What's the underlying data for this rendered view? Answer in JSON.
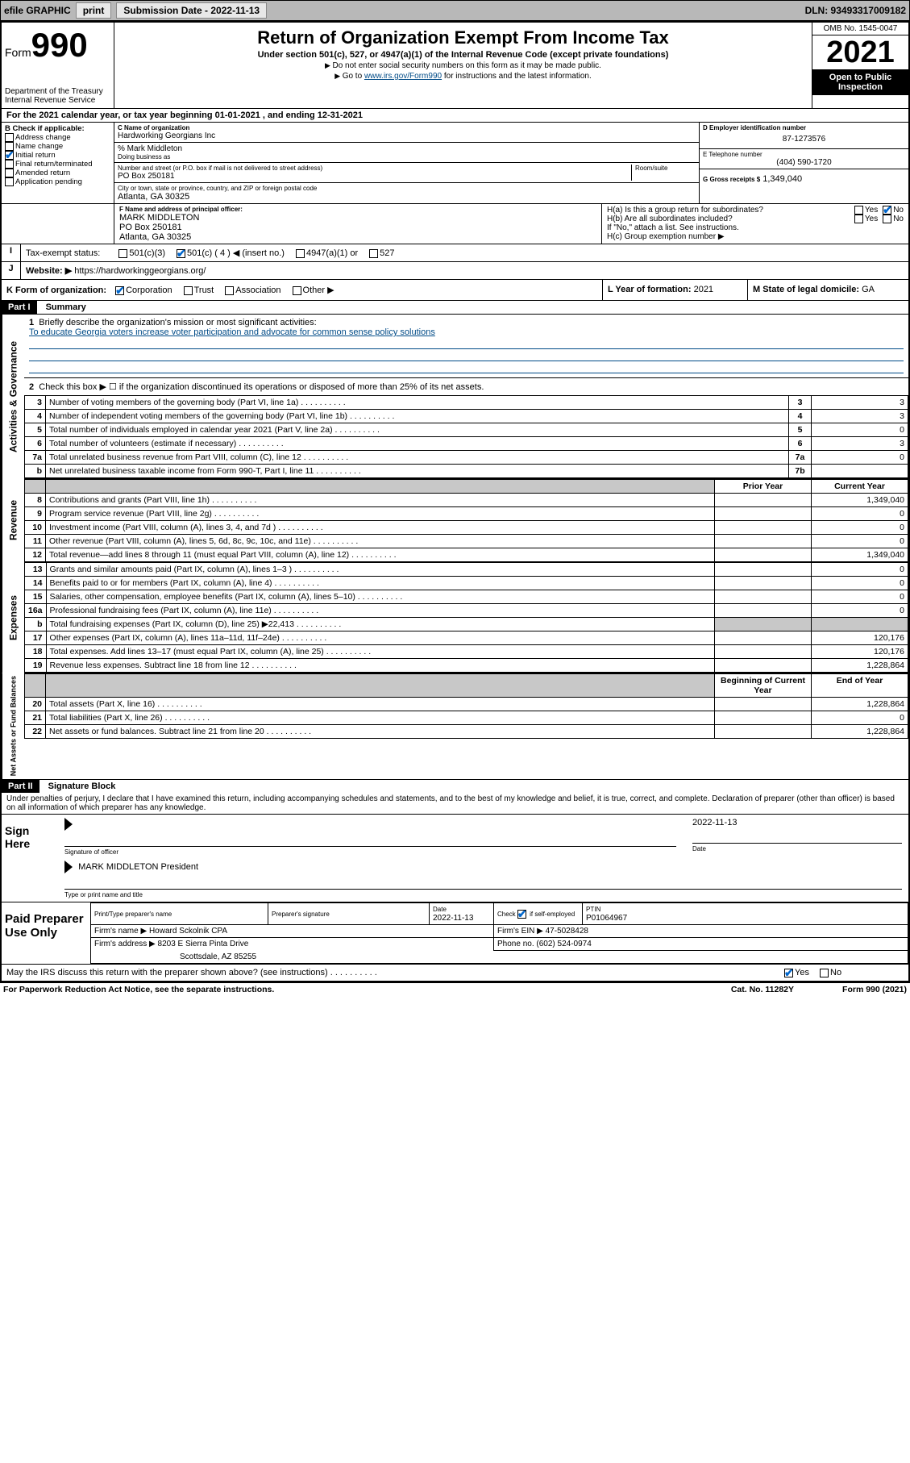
{
  "topbar": {
    "efile_label": "efile GRAPHIC",
    "print_label": "print",
    "submission_label": "Submission Date - 2022-11-13",
    "dln_label": "DLN: 93493317009182"
  },
  "header": {
    "form_word": "Form",
    "form_num": "990",
    "dept": "Department of the Treasury",
    "irs": "Internal Revenue Service",
    "title": "Return of Organization Exempt From Income Tax",
    "subtitle": "Under section 501(c), 527, or 4947(a)(1) of the Internal Revenue Code (except private foundations)",
    "note1": "Do not enter social security numbers on this form as it may be made public.",
    "note2_pre": "Go to ",
    "note2_link": "www.irs.gov/Form990",
    "note2_post": " for instructions and the latest information.",
    "omb": "OMB No. 1545-0047",
    "year": "2021",
    "open": "Open to Public Inspection"
  },
  "lineA": {
    "text": "For the 2021 calendar year, or tax year beginning 01-01-2021   , and ending 12-31-2021"
  },
  "boxB": {
    "hdr": "B Check if applicable:",
    "items": [
      "Address change",
      "Name change",
      "Initial return",
      "Final return/terminated",
      "Amended return",
      "Application pending"
    ],
    "checked_index": 2
  },
  "boxC": {
    "name_lbl": "C Name of organization",
    "name_val": "Hardworking Georgians Inc",
    "care_of": "% Mark Middleton",
    "dba_lbl": "Doing business as",
    "addr_lbl": "Number and street (or P.O. box if mail is not delivered to street address)",
    "room_lbl": "Room/suite",
    "addr_val": "PO Box 250181",
    "city_lbl": "City or town, state or province, country, and ZIP or foreign postal code",
    "city_val": "Atlanta, GA  30325"
  },
  "boxD": {
    "lbl": "D Employer identification number",
    "val": "87-1273576"
  },
  "boxE": {
    "lbl": "E Telephone number",
    "val": "(404) 590-1720"
  },
  "boxG": {
    "lbl": "G Gross receipts $",
    "val": "1,349,040"
  },
  "boxF": {
    "lbl": "F Name and address of principal officer:",
    "name": "MARK MIDDLETON",
    "addr1": "PO Box 250181",
    "addr2": "Atlanta, GA  30325"
  },
  "boxH": {
    "a_lbl": "H(a)  Is this a group return for subordinates?",
    "b_lbl": "H(b)  Are all subordinates included?",
    "b_note": "If \"No,\" attach a list. See instructions.",
    "c_lbl": "H(c)  Group exemption number ▶",
    "yes": "Yes",
    "no": "No"
  },
  "boxI": {
    "lbl": "Tax-exempt status:",
    "opts": [
      "501(c)(3)",
      "501(c) ( 4 ) ◀ (insert no.)",
      "4947(a)(1) or",
      "527"
    ],
    "checked_index": 1
  },
  "boxJ": {
    "lbl": "Website: ▶",
    "val": "https://hardworkinggeorgians.org/"
  },
  "boxK": {
    "lbl": "K Form of organization:",
    "opts": [
      "Corporation",
      "Trust",
      "Association",
      "Other ▶"
    ],
    "checked_index": 0
  },
  "boxL": {
    "lbl": "L Year of formation:",
    "val": "2021"
  },
  "boxM": {
    "lbl": "M State of legal domicile:",
    "val": "GA"
  },
  "partI": {
    "hdr": "Part I",
    "title": "Summary"
  },
  "summary": {
    "l1_lbl": "Briefly describe the organization's mission or most significant activities:",
    "l1_val": "To educate Georgia voters increase voter participation and advocate for common sense policy solutions",
    "l2_lbl": "Check this box ▶ ☐  if the organization discontinued its operations or disposed of more than 25% of its net assets.",
    "rows_gov": [
      {
        "n": "3",
        "lbl": "Number of voting members of the governing body (Part VI, line 1a)",
        "box": "3",
        "val": "3"
      },
      {
        "n": "4",
        "lbl": "Number of independent voting members of the governing body (Part VI, line 1b)",
        "box": "4",
        "val": "3"
      },
      {
        "n": "5",
        "lbl": "Total number of individuals employed in calendar year 2021 (Part V, line 2a)",
        "box": "5",
        "val": "0"
      },
      {
        "n": "6",
        "lbl": "Total number of volunteers (estimate if necessary)",
        "box": "6",
        "val": "3"
      },
      {
        "n": "7a",
        "lbl": "Total unrelated business revenue from Part VIII, column (C), line 12",
        "box": "7a",
        "val": "0"
      },
      {
        "n": "b",
        "lbl": "Net unrelated business taxable income from Form 990-T, Part I, line 11",
        "box": "7b",
        "val": ""
      }
    ],
    "col_prior": "Prior Year",
    "col_curr": "Current Year",
    "rows_rev": [
      {
        "n": "8",
        "lbl": "Contributions and grants (Part VIII, line 1h)",
        "p": "",
        "c": "1,349,040"
      },
      {
        "n": "9",
        "lbl": "Program service revenue (Part VIII, line 2g)",
        "p": "",
        "c": "0"
      },
      {
        "n": "10",
        "lbl": "Investment income (Part VIII, column (A), lines 3, 4, and 7d )",
        "p": "",
        "c": "0"
      },
      {
        "n": "11",
        "lbl": "Other revenue (Part VIII, column (A), lines 5, 6d, 8c, 9c, 10c, and 11e)",
        "p": "",
        "c": "0"
      },
      {
        "n": "12",
        "lbl": "Total revenue—add lines 8 through 11 (must equal Part VIII, column (A), line 12)",
        "p": "",
        "c": "1,349,040"
      }
    ],
    "rows_exp": [
      {
        "n": "13",
        "lbl": "Grants and similar amounts paid (Part IX, column (A), lines 1–3 )",
        "p": "",
        "c": "0"
      },
      {
        "n": "14",
        "lbl": "Benefits paid to or for members (Part IX, column (A), line 4)",
        "p": "",
        "c": "0"
      },
      {
        "n": "15",
        "lbl": "Salaries, other compensation, employee benefits (Part IX, column (A), lines 5–10)",
        "p": "",
        "c": "0"
      },
      {
        "n": "16a",
        "lbl": "Professional fundraising fees (Part IX, column (A), line 11e)",
        "p": "",
        "c": "0"
      },
      {
        "n": "b",
        "lbl": "Total fundraising expenses (Part IX, column (D), line 25) ▶22,413",
        "p": "shade",
        "c": "shade"
      },
      {
        "n": "17",
        "lbl": "Other expenses (Part IX, column (A), lines 11a–11d, 11f–24e)",
        "p": "",
        "c": "120,176"
      },
      {
        "n": "18",
        "lbl": "Total expenses. Add lines 13–17 (must equal Part IX, column (A), line 25)",
        "p": "",
        "c": "120,176"
      },
      {
        "n": "19",
        "lbl": "Revenue less expenses. Subtract line 18 from line 12",
        "p": "",
        "c": "1,228,864"
      }
    ],
    "col_begin": "Beginning of Current Year",
    "col_end": "End of Year",
    "rows_net": [
      {
        "n": "20",
        "lbl": "Total assets (Part X, line 16)",
        "p": "",
        "c": "1,228,864"
      },
      {
        "n": "21",
        "lbl": "Total liabilities (Part X, line 26)",
        "p": "",
        "c": "0"
      },
      {
        "n": "22",
        "lbl": "Net assets or fund balances. Subtract line 21 from line 20",
        "p": "",
        "c": "1,228,864"
      }
    ],
    "vlabels": {
      "gov": "Activities & Governance",
      "rev": "Revenue",
      "exp": "Expenses",
      "net": "Net Assets or Fund Balances"
    }
  },
  "partII": {
    "hdr": "Part II",
    "title": "Signature Block",
    "decl": "Under penalties of perjury, I declare that I have examined this return, including accompanying schedules and statements, and to the best of my knowledge and belief, it is true, correct, and complete. Declaration of preparer (other than officer) is based on all information of which preparer has any knowledge."
  },
  "sign": {
    "left": "Sign Here",
    "sig_lbl": "Signature of officer",
    "date_lbl": "Date",
    "date_val": "2022-11-13",
    "name_lbl": "Type or print name and title",
    "name_val": "MARK MIDDLETON President"
  },
  "prep": {
    "left": "Paid Preparer Use Only",
    "hdrs": [
      "Print/Type preparer's name",
      "Preparer's signature",
      "Date",
      "",
      "PTIN"
    ],
    "date": "2022-11-13",
    "check_lbl": "Check ☑ if self-employed",
    "ptin": "P01064967",
    "firm_name_lbl": "Firm's name    ▶",
    "firm_name": "Howard Sckolnik CPA",
    "ein_lbl": "Firm's EIN ▶",
    "ein": "47-5028428",
    "firm_addr_lbl": "Firm's address ▶",
    "firm_addr1": "8203 E Sierra Pinta Drive",
    "firm_addr2": "Scottsdale, AZ  85255",
    "phone_lbl": "Phone no.",
    "phone": "(602) 524-0974"
  },
  "discuss": {
    "lbl": "May the IRS discuss this return with the preparer shown above? (see instructions)",
    "yes": "Yes",
    "no": "No"
  },
  "footer": {
    "pra": "For Paperwork Reduction Act Notice, see the separate instructions.",
    "cat": "Cat. No. 11282Y",
    "form": "Form 990 (2021)"
  },
  "colors": {
    "link": "#004b87",
    "check": "#0066cc",
    "shade": "#c8c8c8",
    "topbar": "#b8b8b8"
  }
}
